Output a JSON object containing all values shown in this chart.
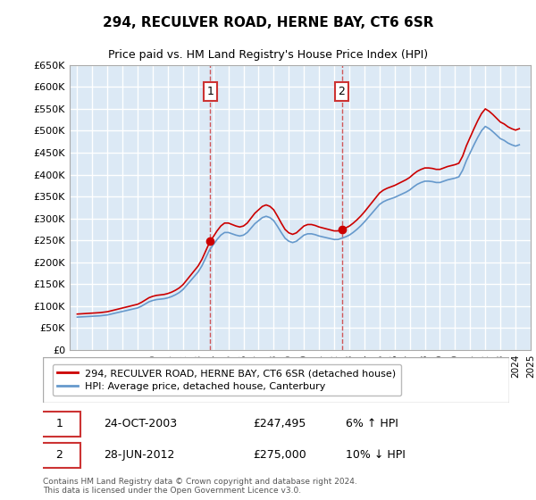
{
  "title": "294, RECULVER ROAD, HERNE BAY, CT6 6SR",
  "subtitle": "Price paid vs. HM Land Registry's House Price Index (HPI)",
  "ylabel_ticks": [
    "£0",
    "£50K",
    "£100K",
    "£150K",
    "£200K",
    "£250K",
    "£300K",
    "£350K",
    "£400K",
    "£450K",
    "£500K",
    "£550K",
    "£600K",
    "£650K"
  ],
  "ytick_values": [
    0,
    50000,
    100000,
    150000,
    200000,
    250000,
    300000,
    350000,
    400000,
    450000,
    500000,
    550000,
    600000,
    650000
  ],
  "ylim": [
    0,
    650000
  ],
  "bg_color": "#dce9f5",
  "plot_bg": "#dce9f5",
  "grid_color": "#ffffff",
  "line1_color": "#cc0000",
  "line2_color": "#6699cc",
  "marker1_color": "#cc0000",
  "marker2_color": "#cc0000",
  "vline_color": "#cc3333",
  "annotation1": {
    "x_year": 2003.8,
    "y": 247495,
    "label": "1"
  },
  "annotation2": {
    "x_year": 2012.5,
    "y": 275000,
    "label": "2"
  },
  "legend_line1": "294, RECULVER ROAD, HERNE BAY, CT6 6SR (detached house)",
  "legend_line2": "HPI: Average price, detached house, Canterbury",
  "table_row1": [
    "1",
    "24-OCT-2003",
    "£247,495",
    "6% ↑ HPI"
  ],
  "table_row2": [
    "2",
    "28-JUN-2012",
    "£275,000",
    "10% ↓ HPI"
  ],
  "footer": "Contains HM Land Registry data © Crown copyright and database right 2024.\nThis data is licensed under the Open Government Licence v3.0.",
  "hpi_data": {
    "years": [
      1995.0,
      1995.25,
      1995.5,
      1995.75,
      1996.0,
      1996.25,
      1996.5,
      1996.75,
      1997.0,
      1997.25,
      1997.5,
      1997.75,
      1998.0,
      1998.25,
      1998.5,
      1998.75,
      1999.0,
      1999.25,
      1999.5,
      1999.75,
      2000.0,
      2000.25,
      2000.5,
      2000.75,
      2001.0,
      2001.25,
      2001.5,
      2001.75,
      2002.0,
      2002.25,
      2002.5,
      2002.75,
      2003.0,
      2003.25,
      2003.5,
      2003.75,
      2004.0,
      2004.25,
      2004.5,
      2004.75,
      2005.0,
      2005.25,
      2005.5,
      2005.75,
      2006.0,
      2006.25,
      2006.5,
      2006.75,
      2007.0,
      2007.25,
      2007.5,
      2007.75,
      2008.0,
      2008.25,
      2008.5,
      2008.75,
      2009.0,
      2009.25,
      2009.5,
      2009.75,
      2010.0,
      2010.25,
      2010.5,
      2010.75,
      2011.0,
      2011.25,
      2011.5,
      2011.75,
      2012.0,
      2012.25,
      2012.5,
      2012.75,
      2013.0,
      2013.25,
      2013.5,
      2013.75,
      2014.0,
      2014.25,
      2014.5,
      2014.75,
      2015.0,
      2015.25,
      2015.5,
      2015.75,
      2016.0,
      2016.25,
      2016.5,
      2016.75,
      2017.0,
      2017.25,
      2017.5,
      2017.75,
      2018.0,
      2018.25,
      2018.5,
      2018.75,
      2019.0,
      2019.25,
      2019.5,
      2019.75,
      2020.0,
      2020.25,
      2020.5,
      2020.75,
      2021.0,
      2021.25,
      2021.5,
      2021.75,
      2022.0,
      2022.25,
      2022.5,
      2022.75,
      2023.0,
      2023.25,
      2023.5,
      2023.75,
      2024.0,
      2024.25
    ],
    "values": [
      75000,
      75500,
      76000,
      76500,
      77000,
      77500,
      78000,
      79000,
      80000,
      82000,
      84000,
      86000,
      88000,
      90000,
      92000,
      94000,
      96000,
      100000,
      105000,
      110000,
      113000,
      115000,
      116000,
      117000,
      119000,
      122000,
      126000,
      131000,
      138000,
      148000,
      158000,
      168000,
      178000,
      192000,
      210000,
      228000,
      240000,
      252000,
      262000,
      268000,
      268000,
      265000,
      262000,
      260000,
      262000,
      268000,
      278000,
      288000,
      295000,
      302000,
      305000,
      302000,
      295000,
      282000,
      268000,
      255000,
      248000,
      245000,
      248000,
      255000,
      262000,
      265000,
      265000,
      263000,
      260000,
      258000,
      256000,
      254000,
      252000,
      252000,
      255000,
      258000,
      262000,
      268000,
      275000,
      283000,
      292000,
      302000,
      312000,
      322000,
      332000,
      338000,
      342000,
      345000,
      348000,
      352000,
      356000,
      360000,
      365000,
      372000,
      378000,
      382000,
      385000,
      385000,
      384000,
      382000,
      382000,
      385000,
      388000,
      390000,
      392000,
      395000,
      410000,
      432000,
      450000,
      468000,
      485000,
      500000,
      510000,
      505000,
      498000,
      490000,
      482000,
      478000,
      472000,
      468000,
      465000,
      468000
    ]
  },
  "price_data": {
    "years": [
      1995.0,
      1996.5,
      1998.0,
      2000.5,
      2003.8,
      2012.5
    ],
    "values": [
      82000,
      85000,
      92000,
      115000,
      247495,
      275000
    ]
  },
  "xmin": 1994.5,
  "xmax": 2025.0
}
